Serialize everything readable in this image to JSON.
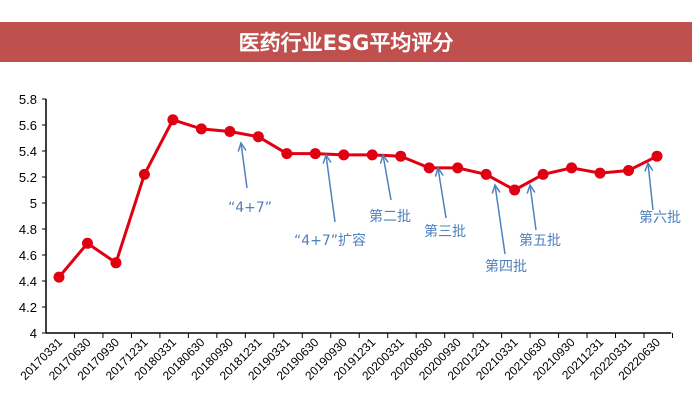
{
  "chart_data": {
    "type": "line",
    "title": "医药行业ESG平均评分",
    "xlabel": "",
    "ylabel": "",
    "ylim": [
      4,
      5.8
    ],
    "yticks": [
      "4",
      "4.2",
      "4.4",
      "4.6",
      "4.8",
      "5",
      "5.2",
      "5.4",
      "5.6",
      "5.8"
    ],
    "grid": false,
    "categories": [
      "20170331",
      "20170630",
      "20170930",
      "20171231",
      "20180331",
      "20180630",
      "20180930",
      "20181231",
      "20190331",
      "20190630",
      "20190930",
      "20191231",
      "20200331",
      "20200630",
      "20200930",
      "20201231",
      "20210331",
      "20210630",
      "20210930",
      "20211231",
      "20220331",
      "20220630"
    ],
    "series": [
      {
        "name": "ESG平均评分",
        "color": "#e00012",
        "values": [
          4.43,
          4.69,
          4.54,
          5.22,
          5.64,
          5.57,
          5.55,
          5.51,
          5.38,
          5.38,
          5.37,
          5.37,
          5.36,
          5.27,
          5.27,
          5.22,
          5.1,
          5.22,
          5.27,
          5.23,
          5.25,
          5.36
        ]
      }
    ],
    "annotations": [
      {
        "text": "“4+7”",
        "between": [
          6,
          7
        ]
      },
      {
        "text": "“4+7”扩容",
        "between": [
          9,
          10
        ]
      },
      {
        "text": "第二批",
        "between": [
          11,
          12
        ]
      },
      {
        "text": "第三批",
        "between": [
          13,
          14
        ]
      },
      {
        "text": "第四批",
        "between": [
          15,
          16
        ]
      },
      {
        "text": "第五批",
        "between": [
          16,
          17
        ]
      },
      {
        "text": "第六批",
        "between": [
          20,
          21
        ]
      }
    ]
  }
}
